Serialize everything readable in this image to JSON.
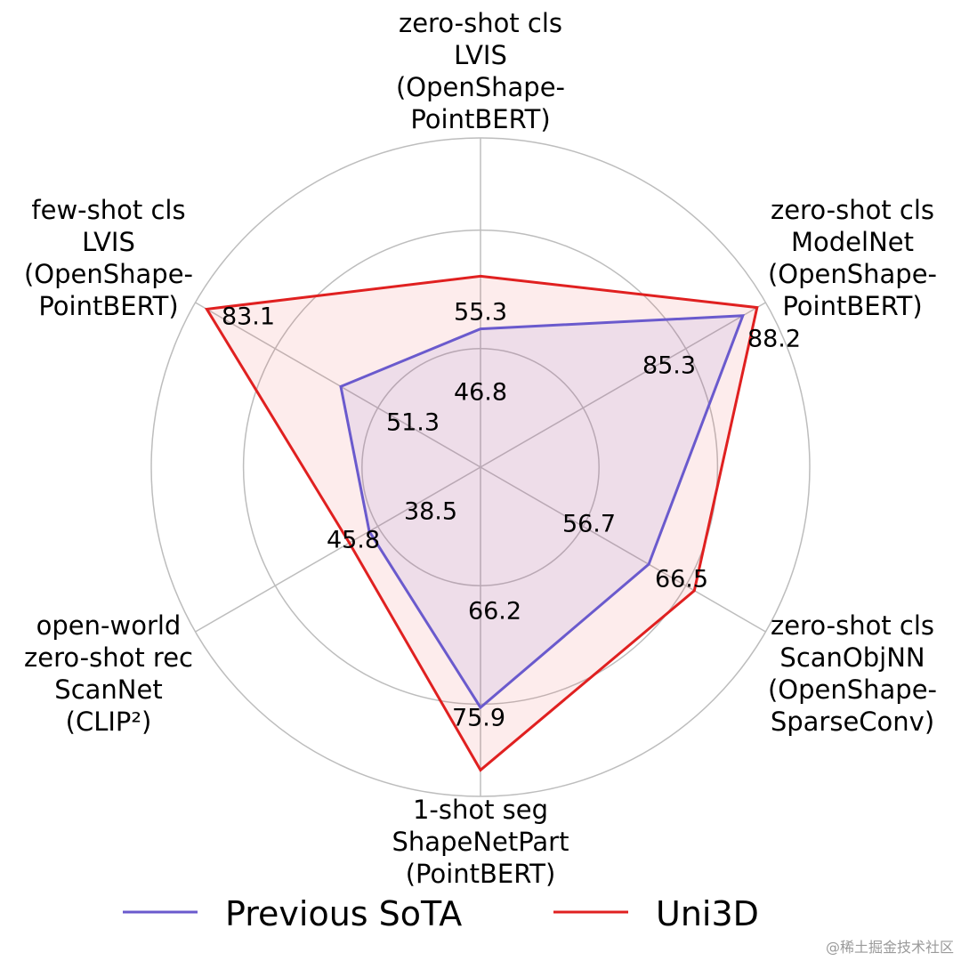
{
  "chart_data": {
    "type": "radar",
    "title": "",
    "axes": [
      {
        "lines": [
          "zero-shot cls",
          "LVIS",
          "(OpenShape-",
          "PointBERT)"
        ]
      },
      {
        "lines": [
          "zero-shot cls",
          "ModelNet",
          "(OpenShape-",
          "PointBERT)"
        ]
      },
      {
        "lines": [
          "zero-shot cls",
          "ScanObjNN",
          "(OpenShape-",
          "SparseConv)"
        ]
      },
      {
        "lines": [
          "1-shot seg",
          "ShapeNetPart",
          "(PointBERT)"
        ]
      },
      {
        "lines": [
          "open-world",
          "zero-shot rec",
          "ScanNet",
          "(CLIP²)"
        ]
      },
      {
        "lines": [
          "few-shot cls",
          "LVIS",
          "(OpenShape-",
          "PointBERT)"
        ]
      }
    ],
    "series": [
      {
        "name": "Previous SoTA",
        "color": "#6a5acd",
        "values": [
          46.8,
          85.3,
          56.7,
          66.2,
          38.5,
          51.3
        ],
        "labels": [
          "46.8",
          "85.3",
          "56.7",
          "66.2",
          "38.5",
          "51.3"
        ],
        "radial_fraction": [
          0.42,
          0.92,
          0.59,
          0.73,
          0.39,
          0.49
        ]
      },
      {
        "name": "Uni3D",
        "color": "#e02020",
        "fill": "#fdebeb",
        "values": [
          55.3,
          88.2,
          66.5,
          75.9,
          45.8,
          83.1
        ],
        "labels": [
          "55.3",
          "88.2",
          "66.5",
          "75.9",
          "45.8",
          "83.1"
        ],
        "radial_fraction": [
          0.58,
          0.97,
          0.75,
          0.92,
          0.46,
          0.96
        ]
      }
    ],
    "grid": true,
    "legend_position": "bottom"
  },
  "watermark": "@稀土掘金技术社区"
}
